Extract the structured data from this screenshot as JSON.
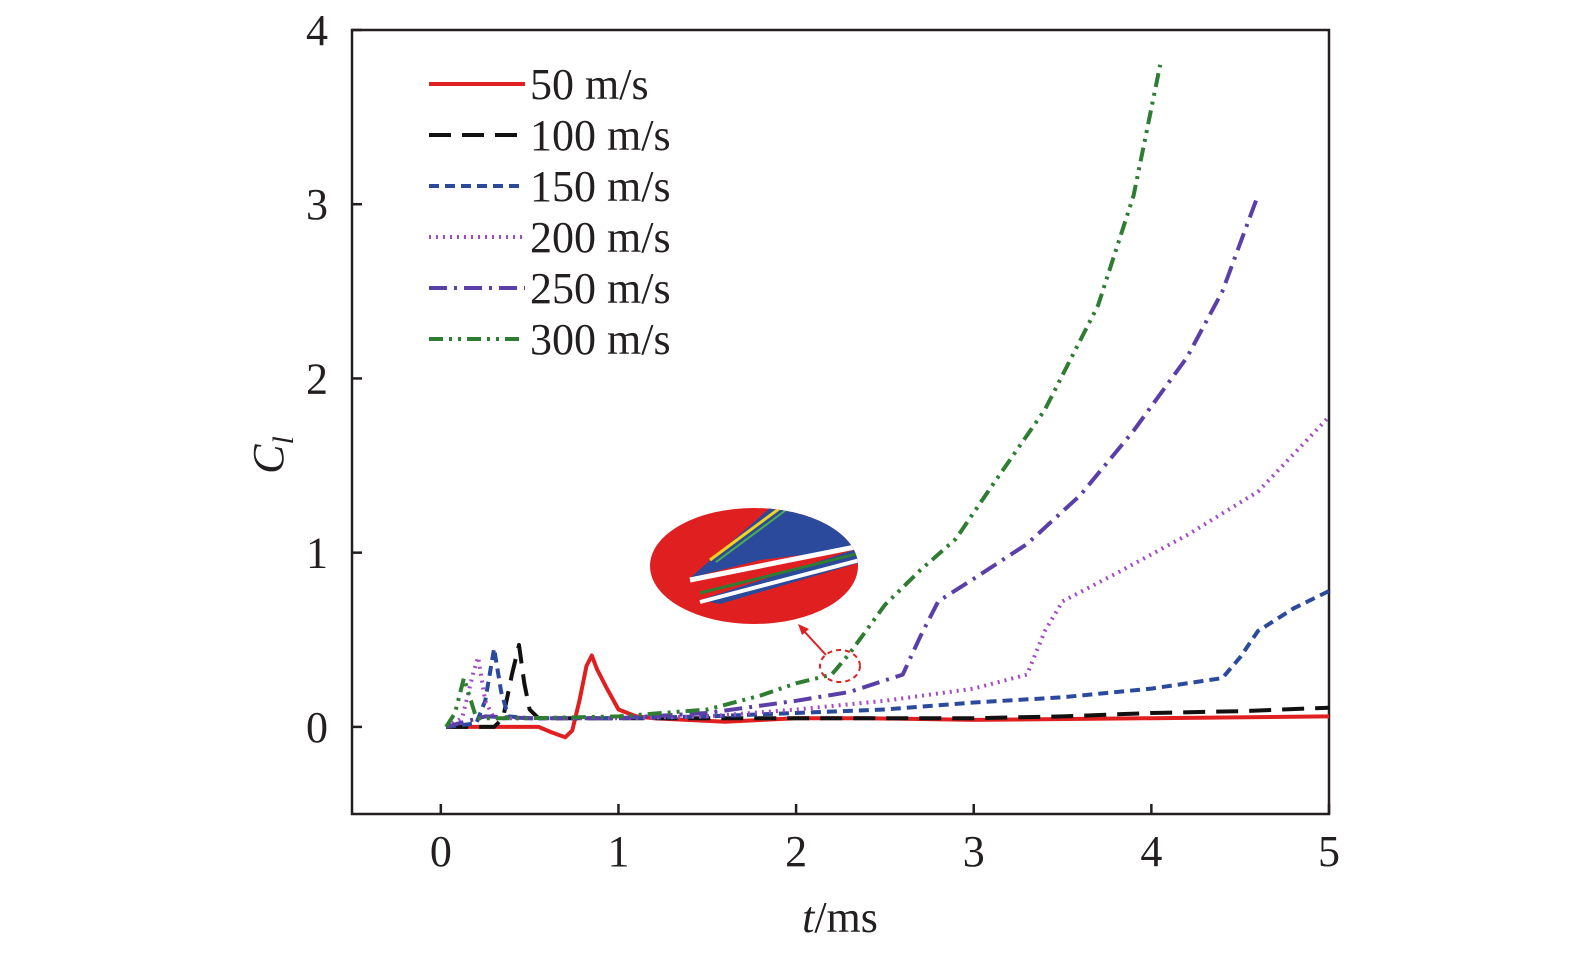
{
  "chart_data": {
    "type": "line",
    "xlabel": {
      "italic": "t",
      "rest": "/ms"
    },
    "ylabel": {
      "main": "C",
      "sub": "l"
    },
    "xlim": [
      -0.5,
      5
    ],
    "ylim": [
      -0.5,
      4
    ],
    "xticks": [
      0,
      1,
      2,
      3,
      4,
      5
    ],
    "yticks": [
      0,
      1,
      2,
      3,
      4
    ],
    "grid": false,
    "legend_position": "top-left",
    "series": [
      {
        "name": "50 m/s",
        "color": "#e02020",
        "dash": "solid",
        "points": [
          [
            0.03,
            0
          ],
          [
            0.3,
            0
          ],
          [
            0.55,
            0
          ],
          [
            0.62,
            -0.03
          ],
          [
            0.7,
            -0.06
          ],
          [
            0.74,
            -0.02
          ],
          [
            0.78,
            0.15
          ],
          [
            0.82,
            0.35
          ],
          [
            0.85,
            0.41
          ],
          [
            0.88,
            0.33
          ],
          [
            0.93,
            0.23
          ],
          [
            1.0,
            0.1
          ],
          [
            1.1,
            0.06
          ],
          [
            1.2,
            0.05
          ],
          [
            1.6,
            0.03
          ],
          [
            2.0,
            0.05
          ],
          [
            2.4,
            0.05
          ],
          [
            3.0,
            0.04
          ],
          [
            4.0,
            0.05
          ],
          [
            5.0,
            0.06
          ]
        ]
      },
      {
        "name": "100 m/s",
        "color": "#111111",
        "dash": "long-dash",
        "points": [
          [
            0.03,
            0
          ],
          [
            0.3,
            0
          ],
          [
            0.35,
            0.05
          ],
          [
            0.4,
            0.3
          ],
          [
            0.44,
            0.47
          ],
          [
            0.47,
            0.25
          ],
          [
            0.5,
            0.1
          ],
          [
            0.55,
            0.05
          ],
          [
            0.7,
            0.05
          ],
          [
            1.0,
            0.05
          ],
          [
            1.5,
            0.05
          ],
          [
            2.0,
            0.05
          ],
          [
            2.5,
            0.05
          ],
          [
            3.0,
            0.05
          ],
          [
            3.5,
            0.06
          ],
          [
            4.0,
            0.08
          ],
          [
            4.5,
            0.09
          ],
          [
            5.0,
            0.11
          ]
        ]
      },
      {
        "name": "150 m/s",
        "color": "#2b4a9c",
        "dash": "short-dash",
        "points": [
          [
            0.03,
            0
          ],
          [
            0.2,
            0.02
          ],
          [
            0.25,
            0.15
          ],
          [
            0.3,
            0.45
          ],
          [
            0.34,
            0.2
          ],
          [
            0.38,
            0.06
          ],
          [
            0.5,
            0.05
          ],
          [
            1.0,
            0.05
          ],
          [
            1.5,
            0.06
          ],
          [
            2.0,
            0.08
          ],
          [
            2.5,
            0.1
          ],
          [
            3.0,
            0.14
          ],
          [
            3.5,
            0.17
          ],
          [
            4.0,
            0.22
          ],
          [
            4.4,
            0.28
          ],
          [
            4.5,
            0.4
          ],
          [
            4.6,
            0.55
          ],
          [
            4.8,
            0.68
          ],
          [
            5.0,
            0.78
          ]
        ]
      },
      {
        "name": "200 m/s",
        "color": "#a14ac6",
        "dash": "dotted",
        "points": [
          [
            0.03,
            0
          ],
          [
            0.12,
            0.05
          ],
          [
            0.18,
            0.3
          ],
          [
            0.21,
            0.4
          ],
          [
            0.25,
            0.15
          ],
          [
            0.3,
            0.05
          ],
          [
            0.5,
            0.05
          ],
          [
            1.0,
            0.05
          ],
          [
            1.5,
            0.06
          ],
          [
            2.0,
            0.1
          ],
          [
            2.5,
            0.15
          ],
          [
            3.0,
            0.22
          ],
          [
            3.3,
            0.3
          ],
          [
            3.4,
            0.55
          ],
          [
            3.5,
            0.72
          ],
          [
            3.8,
            0.88
          ],
          [
            4.2,
            1.1
          ],
          [
            4.6,
            1.35
          ],
          [
            5.0,
            1.78
          ]
        ]
      },
      {
        "name": "250 m/s",
        "color": "#5b3fa8",
        "dash": "dash-dot",
        "points": [
          [
            0.03,
            0
          ],
          [
            0.1,
            0.02
          ],
          [
            0.25,
            0.06
          ],
          [
            0.5,
            0.05
          ],
          [
            1.0,
            0.05
          ],
          [
            1.5,
            0.08
          ],
          [
            2.0,
            0.15
          ],
          [
            2.3,
            0.2
          ],
          [
            2.6,
            0.3
          ],
          [
            2.7,
            0.52
          ],
          [
            2.8,
            0.72
          ],
          [
            3.0,
            0.85
          ],
          [
            3.3,
            1.05
          ],
          [
            3.6,
            1.33
          ],
          [
            3.9,
            1.7
          ],
          [
            4.2,
            2.12
          ],
          [
            4.4,
            2.5
          ],
          [
            4.6,
            3.05
          ]
        ]
      },
      {
        "name": "300 m/s",
        "color": "#2e7d32",
        "dash": "dash-dot-dot",
        "points": [
          [
            0.03,
            0
          ],
          [
            0.08,
            0.08
          ],
          [
            0.13,
            0.28
          ],
          [
            0.17,
            0.15
          ],
          [
            0.2,
            0.05
          ],
          [
            0.5,
            0.05
          ],
          [
            1.0,
            0.06
          ],
          [
            1.5,
            0.1
          ],
          [
            1.8,
            0.18
          ],
          [
            2.0,
            0.25
          ],
          [
            2.2,
            0.3
          ],
          [
            2.3,
            0.42
          ],
          [
            2.5,
            0.7
          ],
          [
            2.7,
            0.9
          ],
          [
            2.9,
            1.08
          ],
          [
            3.1,
            1.38
          ],
          [
            3.4,
            1.82
          ],
          [
            3.7,
            2.42
          ],
          [
            3.9,
            3.05
          ],
          [
            4.05,
            3.8
          ]
        ]
      }
    ],
    "inset": {
      "description_colors": [
        "#e02020",
        "#2b4a9c",
        "#2e7d32",
        "#ffffff"
      ],
      "callout_target": [
        2.22,
        0.36
      ]
    }
  }
}
